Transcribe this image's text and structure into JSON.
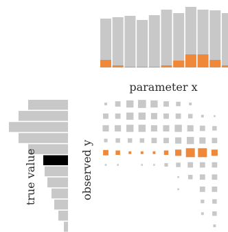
{
  "chart_data": [
    {
      "type": "bar",
      "orientation": "vertical",
      "title": "",
      "xlabel": "parameter x",
      "ylabel": "",
      "x_index": [
        0,
        1,
        2,
        3,
        4,
        5,
        6,
        7,
        8,
        9,
        10
      ],
      "series": [
        {
          "values": [
            71,
            73,
            75,
            69,
            76,
            84,
            79,
            88,
            84,
            83,
            79
          ],
          "color": "#c8c8c8"
        },
        {
          "values": [
            11,
            3,
            1,
            1,
            1,
            3,
            10,
            19,
            19,
            11,
            3
          ],
          "color": "#f0883a"
        }
      ],
      "ylim": [
        0,
        90
      ]
    },
    {
      "type": "bar",
      "orientation": "horizontal",
      "title": "",
      "xlabel": "",
      "ylabel": "true value",
      "y_index": [
        0,
        1,
        2,
        3,
        4,
        5,
        6,
        7,
        8,
        9,
        10,
        11
      ],
      "values": [
        58,
        72,
        86,
        72,
        58,
        36,
        34,
        30,
        24,
        20,
        14,
        6
      ],
      "highlight_index": 5,
      "bar_color": "#c8c8c8",
      "highlight_color": "#000000"
    },
    {
      "type": "heatmap",
      "title": "",
      "xlabel": "",
      "ylabel": "observed y",
      "mark": "square",
      "size_rows": [
        [
          0.3,
          0.6,
          0.8,
          0.9,
          0.8,
          0.6,
          0.5,
          0.3,
          0,
          0
        ],
        [
          0.6,
          0.6,
          0.8,
          0.8,
          0.7,
          0.6,
          0.6,
          0.5,
          0.3,
          0.2
        ],
        [
          0.7,
          0.7,
          0.8,
          0.8,
          0.7,
          0.7,
          0.8,
          0.7,
          0.6,
          0.5
        ],
        [
          0.4,
          0.5,
          0.5,
          0.5,
          0.6,
          0.6,
          0.7,
          0.8,
          0.7,
          0.6
        ],
        [
          0.6,
          0.5,
          0.3,
          0.3,
          0.3,
          0.5,
          0.7,
          1.0,
          1.0,
          0.7
        ],
        [
          0.2,
          0.2,
          0,
          0.2,
          0.2,
          0.4,
          0.5,
          0.6,
          0.6,
          0.6
        ],
        [
          0,
          0,
          0,
          0,
          0,
          0,
          0.2,
          0.5,
          0.6,
          0.6
        ],
        [
          0,
          0,
          0,
          0,
          0,
          0,
          0.2,
          0,
          0.6,
          0.6
        ],
        [
          0,
          0,
          0,
          0,
          0,
          0,
          0,
          0,
          0.4,
          0.5
        ],
        [
          0,
          0,
          0,
          0,
          0,
          0,
          0,
          0,
          0.3,
          0.5
        ],
        [
          0,
          0,
          0,
          0,
          0,
          0,
          0,
          0,
          0,
          0.3
        ]
      ],
      "highlight_row": 4,
      "cell_color": "#c8c8c8",
      "highlight_color": "#f0883a"
    }
  ]
}
